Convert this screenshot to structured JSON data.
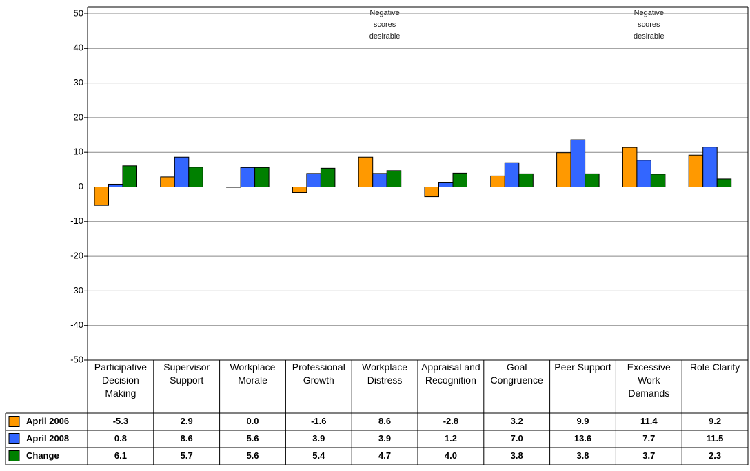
{
  "chart_data": {
    "type": "bar",
    "categories": [
      "Participative Decision Making",
      "Supervisor Support",
      "Workplace Morale",
      "Professional Growth",
      "Workplace Distress",
      "Appraisal and Recognition",
      "Goal Congruence",
      "Peer Support",
      "Excessive Work Demands",
      "Role Clarity"
    ],
    "annotations": [
      null,
      null,
      null,
      null,
      "Negative scores desirable",
      null,
      null,
      null,
      "Negative scores desirable",
      null
    ],
    "series": [
      {
        "name": "April 2006",
        "color": "#ff9900",
        "values": [
          -5.3,
          2.9,
          0,
          -1.6,
          8.6,
          -2.8,
          3.2,
          9.9,
          11.4,
          9.2
        ],
        "value_labels": [
          "-5.3",
          "2.9",
          "0.0",
          "-1.6",
          "8.6",
          "-2.8",
          "3.2",
          "9.9",
          "11.4",
          "9.2"
        ]
      },
      {
        "name": "April 2008",
        "color": "#3366ff",
        "values": [
          0.8,
          8.6,
          5.6,
          3.9,
          3.9,
          1.2,
          7.0,
          13.6,
          7.7,
          11.5
        ],
        "value_labels": [
          "0.8",
          "8.6",
          "5.6",
          "3.9",
          "3.9",
          "1.2",
          "7.0",
          "13.6",
          "7.7",
          "11.5"
        ]
      },
      {
        "name": "Change",
        "color": "#008000",
        "values": [
          6.1,
          5.7,
          5.6,
          5.4,
          4.7,
          4.0,
          3.8,
          3.8,
          3.7,
          2.3
        ],
        "value_labels": [
          "6.1",
          "5.7",
          "5.6",
          "5.4",
          "4.7",
          "4.0",
          "3.8",
          "3.8",
          "3.7",
          "2.3"
        ]
      }
    ],
    "ylim": [
      -50,
      50
    ],
    "yticks": [
      -50,
      -40,
      -30,
      -20,
      -10,
      0,
      10,
      20,
      30,
      40,
      50
    ],
    "grid": true
  }
}
